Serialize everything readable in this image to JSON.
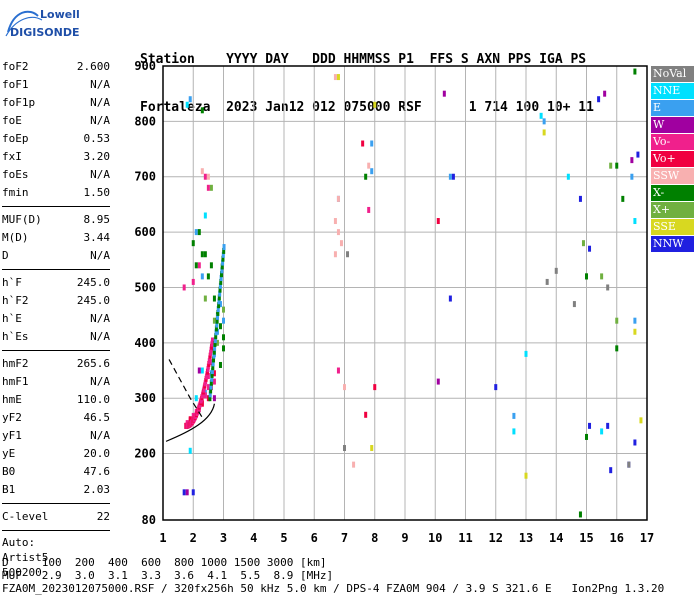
{
  "logo": {
    "line1": "Lowell",
    "line2": "DIGISONDE"
  },
  "header": {
    "line1": "Station    YYYY DAY   DDD HHMMSS P1  FFS S AXN PPS IGA PS",
    "line2": "Fortaleza  2023 Jan12 012 075000 RSF      1 714 100 10+ 11"
  },
  "params": {
    "group1": [
      {
        "name": "foF2",
        "value": "2.600"
      },
      {
        "name": "foF1",
        "value": "N/A"
      },
      {
        "name": "foF1p",
        "value": "N/A"
      },
      {
        "name": "foE",
        "value": "N/A"
      },
      {
        "name": "foEp",
        "value": "0.53"
      },
      {
        "name": "fxI",
        "value": "3.20"
      },
      {
        "name": "foEs",
        "value": "N/A"
      },
      {
        "name": "fmin",
        "value": "1.50"
      }
    ],
    "group2": [
      {
        "name": "MUF(D)",
        "value": "8.95"
      },
      {
        "name": "M(D)",
        "value": "3.44"
      },
      {
        "name": "D",
        "value": "N/A"
      }
    ],
    "group3": [
      {
        "name": "h`F",
        "value": "245.0"
      },
      {
        "name": "h`F2",
        "value": "245.0"
      },
      {
        "name": "h`E",
        "value": "N/A"
      },
      {
        "name": "h`Es",
        "value": "N/A"
      }
    ],
    "group4": [
      {
        "name": "hmF2",
        "value": "265.6"
      },
      {
        "name": "hmF1",
        "value": "N/A"
      },
      {
        "name": "hmE",
        "value": "110.0"
      },
      {
        "name": "yF2",
        "value": "46.5"
      },
      {
        "name": "yF1",
        "value": "N/A"
      },
      {
        "name": "yE",
        "value": "20.0"
      },
      {
        "name": "B0",
        "value": "47.6"
      },
      {
        "name": "B1",
        "value": "2.03"
      }
    ],
    "clevel": {
      "name": "C-level",
      "value": "22"
    },
    "auto": [
      "Auto:",
      "Artist5",
      "500200"
    ]
  },
  "legend": [
    {
      "label": "NoVal",
      "color": "#808080"
    },
    {
      "label": "NNE",
      "color": "#00e0ff"
    },
    {
      "label": "E",
      "color": "#3aa0f0"
    },
    {
      "label": "W",
      "color": "#a000a0"
    },
    {
      "label": "Vo-",
      "color": "#f0208c"
    },
    {
      "label": "Vo+",
      "color": "#f00040"
    },
    {
      "label": "SSW",
      "color": "#f8b0b0"
    },
    {
      "label": "X-",
      "color": "#008000"
    },
    {
      "label": "X+",
      "color": "#70b040"
    },
    {
      "label": "SSE",
      "color": "#d8d820"
    },
    {
      "label": "NNW",
      "color": "#2020e0"
    }
  ],
  "chart_data": {
    "type": "scatter",
    "xlim": [
      1,
      17
    ],
    "ylim": [
      80,
      900
    ],
    "xticks": [
      1,
      2,
      3,
      4,
      5,
      6,
      7,
      8,
      9,
      10,
      11,
      12,
      13,
      14,
      15,
      16,
      17
    ],
    "yticks": [
      80,
      200,
      300,
      400,
      500,
      600,
      700,
      800,
      900
    ],
    "grid": true,
    "series": [
      {
        "color": "#3aa0f0",
        "points": [
          [
            2.0,
            262
          ],
          [
            2.2,
            285
          ],
          [
            2.4,
            310
          ],
          [
            2.6,
            345
          ],
          [
            2.7,
            380
          ],
          [
            2.8,
            420
          ],
          [
            3.0,
            440
          ],
          [
            2.9,
            470
          ],
          [
            2.3,
            520
          ],
          [
            2.1,
            600
          ],
          [
            1.9,
            840
          ],
          [
            6.8,
            660
          ],
          [
            7.9,
            760
          ],
          [
            7.9,
            710
          ],
          [
            10.5,
            700
          ],
          [
            13.6,
            800
          ],
          [
            16.5,
            700
          ],
          [
            16.6,
            440
          ],
          [
            12.6,
            268
          ]
        ]
      },
      {
        "color": "#00e0ff",
        "points": [
          [
            1.8,
            250
          ],
          [
            1.9,
            205
          ],
          [
            2.1,
            300
          ],
          [
            2.3,
            350
          ],
          [
            2.4,
            630
          ],
          [
            1.8,
            830
          ],
          [
            13.5,
            810
          ],
          [
            14.4,
            700
          ],
          [
            16.6,
            620
          ],
          [
            15.5,
            240
          ],
          [
            12.6,
            240
          ],
          [
            13.0,
            380
          ]
        ]
      },
      {
        "color": "#f0208c",
        "points": [
          [
            1.8,
            255
          ],
          [
            1.9,
            260
          ],
          [
            2.0,
            268
          ],
          [
            2.1,
            275
          ],
          [
            2.2,
            280
          ],
          [
            2.3,
            292
          ],
          [
            2.4,
            305
          ],
          [
            2.5,
            320
          ],
          [
            2.5,
            340
          ],
          [
            2.6,
            365
          ],
          [
            2.6,
            390
          ],
          [
            2.7,
            330
          ],
          [
            2.4,
            700
          ],
          [
            2.5,
            680
          ],
          [
            2.2,
            540
          ],
          [
            2.0,
            510
          ],
          [
            1.7,
            500
          ],
          [
            7.8,
            640
          ],
          [
            6.8,
            350
          ]
        ]
      },
      {
        "color": "#f00040",
        "points": [
          [
            1.9,
            262
          ],
          [
            2.1,
            270
          ],
          [
            2.3,
            290
          ],
          [
            2.5,
            300
          ],
          [
            2.6,
            320
          ],
          [
            2.7,
            345
          ],
          [
            7.7,
            270
          ],
          [
            7.6,
            760
          ],
          [
            10.1,
            620
          ],
          [
            8.0,
            320
          ]
        ]
      },
      {
        "color": "#008000",
        "points": [
          [
            2.2,
            600
          ],
          [
            2.4,
            560
          ],
          [
            2.5,
            520
          ],
          [
            2.7,
            480
          ],
          [
            2.8,
            450
          ],
          [
            2.9,
            430
          ],
          [
            3.0,
            410
          ],
          [
            3.0,
            390
          ],
          [
            2.9,
            360
          ],
          [
            2.6,
            540
          ],
          [
            2.3,
            560
          ],
          [
            2.1,
            540
          ],
          [
            2.0,
            580
          ],
          [
            2.3,
            820
          ],
          [
            7.7,
            700
          ],
          [
            15.0,
            520
          ],
          [
            15.0,
            520
          ],
          [
            16.0,
            720
          ],
          [
            16.2,
            660
          ],
          [
            16.0,
            390
          ],
          [
            15.0,
            230
          ],
          [
            16.6,
            890
          ],
          [
            14.8,
            90
          ]
        ]
      },
      {
        "color": "#70b040",
        "points": [
          [
            2.4,
            480
          ],
          [
            2.7,
            440
          ],
          [
            2.8,
            400
          ],
          [
            3.0,
            460
          ],
          [
            2.6,
            680
          ],
          [
            15.8,
            720
          ],
          [
            16.0,
            440
          ],
          [
            15.5,
            520
          ],
          [
            14.9,
            580
          ]
        ]
      },
      {
        "color": "#f8b0b0",
        "points": [
          [
            2.5,
            700
          ],
          [
            2.3,
            710
          ],
          [
            6.7,
            620
          ],
          [
            6.8,
            600
          ],
          [
            6.9,
            580
          ],
          [
            6.7,
            560
          ],
          [
            6.8,
            660
          ],
          [
            6.7,
            880
          ],
          [
            7.0,
            320
          ],
          [
            7.3,
            180
          ],
          [
            7.8,
            720
          ]
        ]
      },
      {
        "color": "#d8d820",
        "points": [
          [
            6.8,
            880
          ],
          [
            8.0,
            830
          ],
          [
            7.9,
            210
          ],
          [
            13.6,
            780
          ],
          [
            13.0,
            160
          ],
          [
            16.6,
            420
          ],
          [
            16.8,
            260
          ]
        ]
      },
      {
        "color": "#2020e0",
        "points": [
          [
            1.7,
            130
          ],
          [
            2.0,
            130
          ],
          [
            15.1,
            570
          ],
          [
            15.4,
            840
          ],
          [
            14.8,
            660
          ],
          [
            16.7,
            740
          ],
          [
            16.6,
            220
          ],
          [
            16.4,
            180
          ],
          [
            15.8,
            170
          ],
          [
            15.7,
            250
          ],
          [
            15.1,
            250
          ],
          [
            10.5,
            480
          ],
          [
            12.0,
            320
          ],
          [
            10.6,
            700
          ]
        ]
      },
      {
        "color": "#a000a0",
        "points": [
          [
            1.8,
            130
          ],
          [
            2.2,
            350
          ],
          [
            2.7,
            300
          ],
          [
            10.3,
            850
          ],
          [
            10.1,
            330
          ],
          [
            16.5,
            730
          ],
          [
            15.6,
            850
          ]
        ]
      },
      {
        "color": "#808080",
        "points": [
          [
            7.1,
            560
          ],
          [
            7.0,
            210
          ],
          [
            14.0,
            530
          ],
          [
            13.7,
            510
          ],
          [
            15.7,
            500
          ],
          [
            16.4,
            180
          ],
          [
            14.6,
            470
          ]
        ]
      }
    ]
  },
  "footer": {
    "line1": "D     100  200  400  600  800 1000 1500 3000 [km]",
    "line2": "MUF   2.9  3.0  3.1  3.3  3.6  4.1  5.5  8.9 [MHz]",
    "line3": "FZA0M_2023012075000.RSF / 320fx256h 50 kHz 5.0 km / DPS-4 FZA0M 904 / 3.9 S 321.6 E   Ion2Png 1.3.20"
  }
}
